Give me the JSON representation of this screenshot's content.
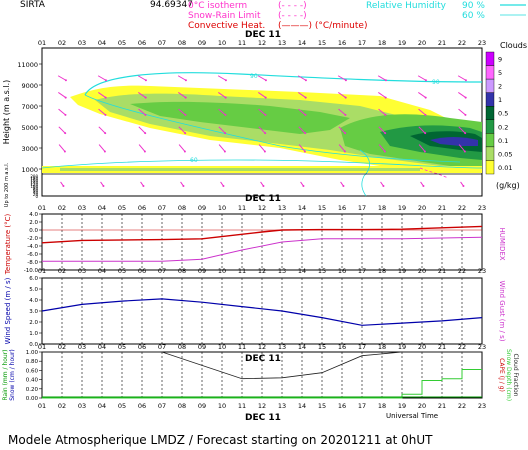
{
  "header": {
    "station": "SIRTA",
    "coords": "94.69347",
    "legend": [
      {
        "label": "0°C isotherm",
        "sample": "(- - - -)",
        "color": "#ff33cc"
      },
      {
        "label": "Snow-Rain Limit",
        "sample": "(- - - -)",
        "color": "#ff33cc"
      },
      {
        "label": "Convective Heat.",
        "sample": "(———)  (°C/minute)",
        "color": "#dd0000"
      }
    ],
    "humidity_label": "Relative Humidity",
    "humidity_values": [
      "90 %",
      "60 %"
    ],
    "humidity_color": "#22dddd"
  },
  "footer": {
    "title": "Modele Atmospherique LMDZ / Forecast starting on 20201211 at 0hUT",
    "universal_time": "Universal Time"
  },
  "colors": {
    "temperature": "#cc0000",
    "humidex": "#cc33cc",
    "wind": "#0000aa",
    "cloud_cover": "#222222",
    "snow_depth": "#33cc33",
    "rain": "#009900"
  },
  "chart_data": [
    {
      "type": "heatmap",
      "name": "clouds",
      "hours": [
        "01",
        "02",
        "03",
        "04",
        "05",
        "06",
        "07",
        "08",
        "09",
        "10",
        "11",
        "12",
        "13",
        "14",
        "15",
        "16",
        "17",
        "18",
        "19",
        "20",
        "21",
        "22",
        "23"
      ],
      "date_label": "DEC 11",
      "ylabel": "Height (m a.s.l.)",
      "ylabel_low": "Up to 200 m a.s.l.",
      "y_ticks_upper": [
        "11000",
        "9000",
        "7000",
        "5000",
        "3000",
        "1000"
      ],
      "y_ticks_lower": [
        "200",
        "180",
        "160",
        "140",
        "120",
        "100",
        "80",
        "60",
        "40",
        "20",
        "0"
      ],
      "colorbar_title": "Clouds",
      "colorbar_labels": [
        "9",
        "5",
        "2",
        "1",
        "0.5",
        "0.2",
        "0.1",
        "0.05",
        "0.01"
      ],
      "colorbar_colors": [
        "#cc00ff",
        "#ff66ff",
        "#cc99ff",
        "#3333aa",
        "#006633",
        "#229944",
        "#66cc44",
        "#aadd66",
        "#ffff33"
      ],
      "colorbar_unit": "(g/kg)",
      "humidity_labels": [
        "60",
        "90"
      ]
    },
    {
      "type": "line",
      "name": "temperature",
      "hours": [
        "01",
        "02",
        "03",
        "04",
        "05",
        "06",
        "07",
        "08",
        "09",
        "10",
        "11",
        "12",
        "13",
        "14",
        "15",
        "16",
        "17",
        "18",
        "19",
        "20",
        "21",
        "22",
        "23"
      ],
      "ylabel_left": "Temperature (°C)",
      "ylabel_right": "HUMIDEX",
      "y_ticks": [
        "4.0",
        "2.0",
        "0.0",
        "-2.0",
        "-4.0",
        "-6.0",
        "-8.0",
        "-10.0"
      ],
      "ylim": [
        -10,
        4
      ],
      "series": [
        {
          "name": "Temperature",
          "x": [
            1,
            3,
            7,
            9,
            12,
            13,
            15,
            17,
            19,
            23
          ],
          "values": [
            -3.2,
            -2.6,
            -2.4,
            -2.2,
            -0.5,
            0.0,
            0.1,
            0.1,
            0.2,
            0.9
          ]
        },
        {
          "name": "HUMIDEX",
          "x": [
            1,
            3,
            7,
            9,
            11,
            13,
            15,
            17,
            19,
            23
          ],
          "values": [
            -7.8,
            -7.8,
            -7.8,
            -7.3,
            -5.0,
            -3.0,
            -2.2,
            -2.2,
            -2.2,
            -1.8
          ]
        }
      ]
    },
    {
      "type": "line",
      "name": "wind",
      "hours": [
        "01",
        "02",
        "03",
        "04",
        "05",
        "06",
        "07",
        "08",
        "09",
        "10",
        "11",
        "12",
        "13",
        "14",
        "15",
        "16",
        "17",
        "18",
        "19",
        "20",
        "21",
        "22",
        "23"
      ],
      "ylabel_left": "Wind Speed (m / s)",
      "ylabel_right": "Wind Gust (m / s)",
      "y_ticks": [
        "6.0",
        "5.0",
        "4.0",
        "3.0",
        "2.0",
        "1.0",
        "0.0"
      ],
      "ylim": [
        0,
        6
      ],
      "series": [
        {
          "name": "Wind Speed",
          "x": [
            1,
            3,
            5,
            7,
            9,
            11,
            13,
            15,
            17,
            19,
            21,
            23
          ],
          "values": [
            3.0,
            3.6,
            3.9,
            4.1,
            3.8,
            3.4,
            3.0,
            2.4,
            1.7,
            1.9,
            2.1,
            2.4
          ]
        }
      ]
    },
    {
      "type": "line",
      "name": "precipitation",
      "hours": [
        "01",
        "02",
        "03",
        "04",
        "05",
        "06",
        "07",
        "08",
        "09",
        "10",
        "11",
        "12",
        "13",
        "14",
        "15",
        "16",
        "17",
        "18",
        "19",
        "20",
        "21",
        "22",
        "23"
      ],
      "date_label": "DEC 11",
      "ylabel_left": "Rain (mm / hour)",
      "ylabel_left2": "Snow (cm / hour)",
      "ylabel_right": "CAPE (J / g)",
      "ylabel_right2": "Snow Depth (cm)",
      "ylabel_right3": "Cloud Fraction",
      "y_ticks": [
        "1.00",
        "0.80",
        "0.60",
        "0.40",
        "0.20",
        "0.00"
      ],
      "ylim": [
        0,
        1
      ],
      "series": [
        {
          "name": "Cloud Fraction",
          "x": [
            1,
            7,
            11,
            13,
            15,
            17,
            19,
            23
          ],
          "values": [
            1.0,
            1.0,
            0.42,
            0.44,
            0.55,
            0.92,
            1.0,
            1.0
          ]
        },
        {
          "name": "Snow Depth",
          "x": [
            1,
            18,
            19,
            19,
            20,
            20,
            21,
            21,
            22,
            22,
            23
          ],
          "values": [
            0,
            0,
            0,
            0.08,
            0.08,
            0.38,
            0.38,
            0.42,
            0.42,
            0.62,
            0.62
          ]
        }
      ]
    }
  ]
}
